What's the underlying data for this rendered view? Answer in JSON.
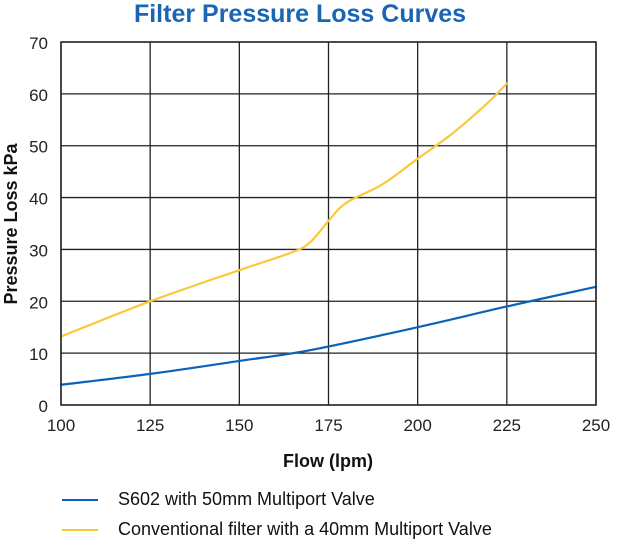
{
  "chart_data": {
    "type": "line",
    "title": "Filter Pressure Loss Curves",
    "xlabel": "Flow (lpm)",
    "ylabel": "Pressure Loss kPa",
    "xlim": [
      100,
      250
    ],
    "ylim": [
      0,
      70
    ],
    "xticks": [
      100,
      125,
      150,
      175,
      200,
      225,
      250
    ],
    "yticks": [
      0,
      10,
      20,
      30,
      40,
      50,
      60,
      70
    ],
    "grid": true,
    "legend_position": "bottom",
    "series": [
      {
        "name": "S602 with 50mm Multiport Valve",
        "color": "#0b63b5",
        "x": [
          100,
          125,
          150,
          170,
          200,
          225,
          250
        ],
        "y": [
          3.9,
          6.0,
          8.5,
          10.6,
          15.0,
          19.0,
          22.8
        ]
      },
      {
        "name": "Conventional filter with a 40mm Multiport Valve",
        "color": "#f9c93a",
        "x": [
          100,
          125,
          150,
          165,
          170,
          175,
          180,
          190,
          200,
          210,
          220,
          225
        ],
        "y": [
          13.2,
          20.0,
          26.0,
          29.5,
          31.5,
          35.5,
          39.0,
          42.5,
          47.5,
          52.5,
          58.5,
          62.0
        ]
      }
    ]
  }
}
